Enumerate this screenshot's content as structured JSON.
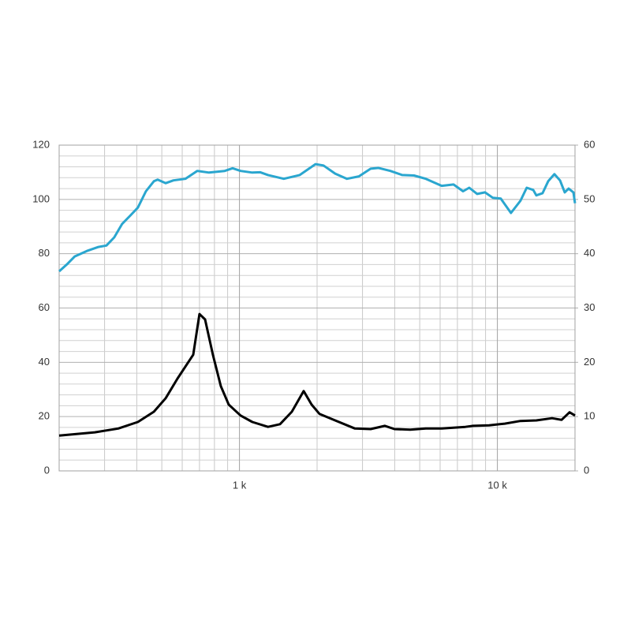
{
  "chart_data": {
    "type": "line",
    "log_x": true,
    "grid": true,
    "minor_grid": true,
    "y_minor_divisions": 5,
    "xlim": [
      200,
      20000
    ],
    "xticks": [
      {
        "value": 1000,
        "label": "1 k"
      },
      {
        "value": 10000,
        "label": "10 k"
      }
    ],
    "ylim": [
      0,
      120
    ],
    "yticks": [
      0,
      20,
      40,
      60,
      80,
      100,
      120
    ],
    "y2lim": [
      0,
      60
    ],
    "y2ticks": [
      0,
      10,
      20,
      30,
      40,
      50,
      60
    ],
    "series": [
      {
        "color": "#2aa6cf",
        "x": [
          200,
          214,
          230,
          256,
          284,
          305,
          327,
          351,
          377,
          404,
          434,
          466,
          482,
          518,
          555,
          617,
          686,
          762,
          877,
          941,
          1010,
          1122,
          1205,
          1291,
          1486,
          1713,
          1972,
          2117,
          2350,
          2612,
          2904,
          3227,
          3462,
          3848,
          4276,
          4752,
          5281,
          6083,
          6761,
          7361,
          7781,
          8354,
          8954,
          9611,
          10310,
          11290,
          12290,
          13000,
          13770,
          14160,
          14970,
          15740,
          16640,
          17500,
          18250,
          18890,
          19720,
          20000
        ],
        "values": [
          73.5,
          76,
          79,
          81,
          82.5,
          83,
          86,
          91,
          94,
          97,
          103,
          106.7,
          107.3,
          106,
          107,
          107.6,
          110.5,
          109.9,
          110.5,
          111.5,
          110.5,
          109.9,
          110,
          109,
          107.6,
          109,
          113,
          112.5,
          109.5,
          107.6,
          108.5,
          111.3,
          111.6,
          110.5,
          109,
          108.8,
          107.6,
          105,
          105.5,
          103,
          104.3,
          102,
          102.6,
          100.6,
          100.3,
          95,
          99.5,
          104.3,
          103.5,
          101.5,
          102.3,
          106.7,
          109.3,
          107,
          102.6,
          104,
          102.6,
          98.6
        ]
      },
      {
        "color": "#000000",
        "axis": "y2",
        "x": [
          200,
          275,
          339,
          404,
          466,
          518,
          575,
          662,
          700,
          736,
          789,
          847,
          909,
          1010,
          1122,
          1291,
          1436,
          1596,
          1774,
          1905,
          2043,
          2350,
          2805,
          3227,
          3664,
          3990,
          4592,
          5281,
          6083,
          7516,
          8056,
          9291,
          10690,
          12290,
          14160,
          16300,
          17740,
          19050,
          20000
        ],
        "values": [
          6.5,
          7.1,
          7.8,
          9.0,
          10.9,
          13.4,
          17,
          21.4,
          28.9,
          27.9,
          21.4,
          15.6,
          12.2,
          10.2,
          9.0,
          8.1,
          8.6,
          10.9,
          14.7,
          12.2,
          10.5,
          9.3,
          7.8,
          7.7,
          8.3,
          7.7,
          7.6,
          7.8,
          7.8,
          8.1,
          8.3,
          8.4,
          8.7,
          9.2,
          9.3,
          9.7,
          9.4,
          10.8,
          10.2
        ]
      }
    ]
  }
}
